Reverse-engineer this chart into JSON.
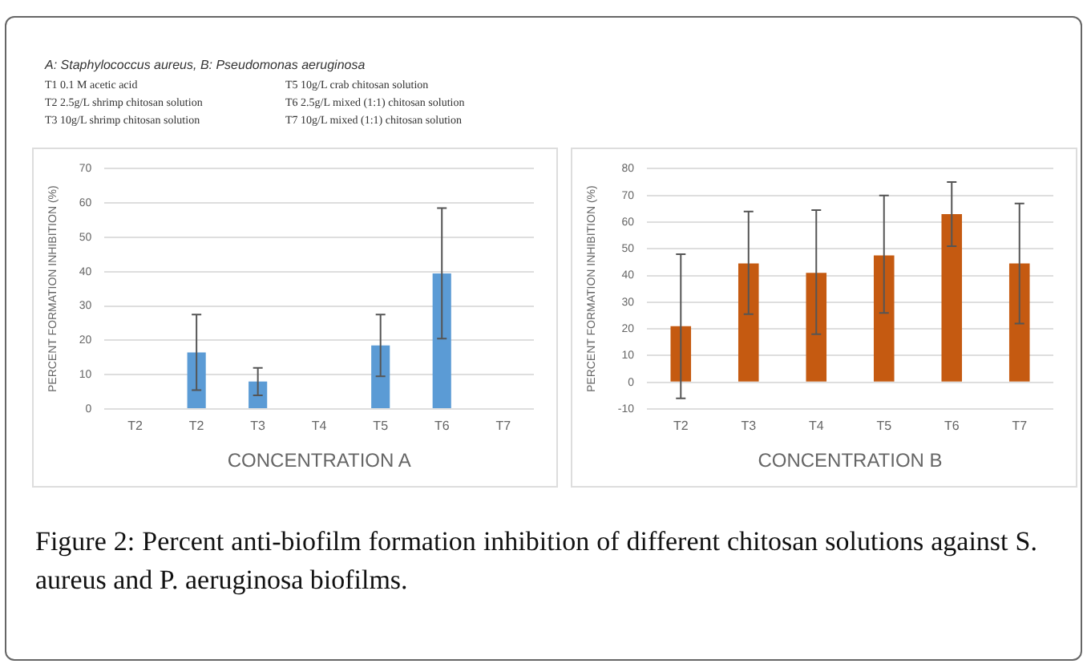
{
  "chart_data": [
    {
      "type": "bar",
      "xlabel": "CONCENTRATION A",
      "ylabel": "PERCENT FORMATION INHIBITION (%)",
      "categories": [
        "T2",
        "T2",
        "T3",
        "T4",
        "T5",
        "T6",
        "T7"
      ],
      "series": [
        {
          "color": "#5b9bd5",
          "values": [
            null,
            16.5,
            8,
            null,
            18.5,
            39.5,
            null
          ],
          "errors": [
            null,
            [
              5.5,
              27.5
            ],
            [
              4,
              12
            ],
            null,
            [
              9.5,
              27.5
            ],
            [
              20.5,
              58.5
            ],
            null
          ]
        }
      ],
      "ylim": [
        0,
        70
      ],
      "yticks": [
        0,
        10,
        20,
        30,
        40,
        50,
        60,
        70
      ],
      "grid": "y",
      "legend": false,
      "annotations": [
        "A: Staphylococcus aureus, B: Pseudomonas aeruginosa",
        "T1 0.1 M acetic acid",
        "T5 10g/L crab chitosan solution",
        "T2 2.5g/L shrimp chitosan solution",
        "T6 2.5g/L mixed (1:1) chitosan solution",
        "T3 10g/L shrimp chitosan solution",
        "T7 10g/L mixed (1:1) chitosan solution"
      ]
    },
    {
      "type": "bar",
      "xlabel": "CONCENTRATION B",
      "ylabel": "PERCENT FORMATION INHIBITION (%)",
      "categories": [
        "T2",
        "T3",
        "T4",
        "T5",
        "T6",
        "T7"
      ],
      "series": [
        {
          "color": "#c55a11",
          "values": [
            21,
            44.5,
            41,
            47.5,
            63,
            44.5
          ],
          "errors": [
            [
              -6,
              48
            ],
            [
              25.5,
              64
            ],
            [
              18,
              64.5
            ],
            [
              26,
              70
            ],
            [
              51,
              75
            ],
            [
              22,
              67
            ]
          ]
        }
      ],
      "ylim": [
        -10,
        80
      ],
      "yticks": [
        -10,
        0,
        10,
        20,
        30,
        40,
        50,
        60,
        70,
        80
      ],
      "grid": "y",
      "legend": false,
      "annotations": [
        "Figure 2: Percent anti-biofilm formation inhibition of different chitosan solutions against S. aureus and P. aeruginosa biofilms."
      ]
    }
  ]
}
